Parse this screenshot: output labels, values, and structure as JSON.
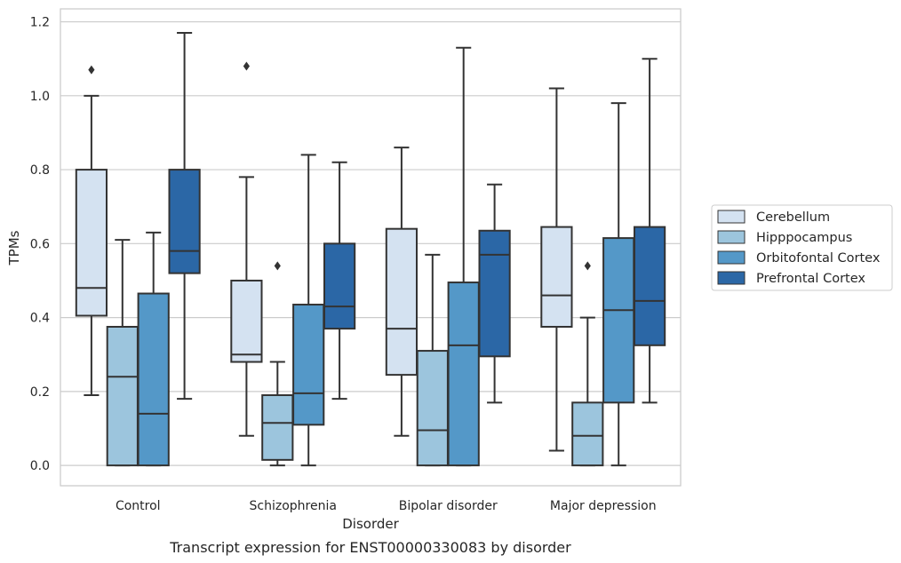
{
  "caption": "Transcript expression for ENST00000330083 by disorder",
  "chart_data": {
    "type": "box",
    "title": "",
    "xlabel": "Disorder",
    "ylabel": "TPMs",
    "categories": [
      "Control",
      "Schizophrenia",
      "Bipolar disorder",
      "Major depression"
    ],
    "ylim": [
      -0.055,
      1.235
    ],
    "yticks": [
      "0.0",
      "0.2",
      "0.4",
      "0.6",
      "0.8",
      "1.0",
      "1.2"
    ],
    "grid": true,
    "legend_position": "right",
    "series": [
      {
        "name": "Cerebellum",
        "color": "#d4e2f1",
        "boxes": [
          {
            "whisker_low": 0.19,
            "q1": 0.405,
            "median": 0.48,
            "q3": 0.8,
            "whisker_high": 1.0,
            "outliers": [
              1.07
            ]
          },
          {
            "whisker_low": 0.08,
            "q1": 0.28,
            "median": 0.3,
            "q3": 0.5,
            "whisker_high": 0.78,
            "outliers": [
              1.08
            ]
          },
          {
            "whisker_low": 0.08,
            "q1": 0.245,
            "median": 0.37,
            "q3": 0.64,
            "whisker_high": 0.86,
            "outliers": []
          },
          {
            "whisker_low": 0.04,
            "q1": 0.375,
            "median": 0.46,
            "q3": 0.645,
            "whisker_high": 1.02,
            "outliers": []
          }
        ]
      },
      {
        "name": "Hipppocampus",
        "color": "#9cc5dd",
        "boxes": [
          {
            "whisker_low": 0.0,
            "q1": 0.0,
            "median": 0.24,
            "q3": 0.375,
            "whisker_high": 0.61,
            "outliers": []
          },
          {
            "whisker_low": 0.0,
            "q1": 0.015,
            "median": 0.115,
            "q3": 0.19,
            "whisker_high": 0.28,
            "outliers": [
              0.54
            ]
          },
          {
            "whisker_low": 0.0,
            "q1": 0.0,
            "median": 0.095,
            "q3": 0.31,
            "whisker_high": 0.57,
            "outliers": []
          },
          {
            "whisker_low": 0.0,
            "q1": 0.0,
            "median": 0.08,
            "q3": 0.17,
            "whisker_high": 0.4,
            "outliers": [
              0.54
            ]
          }
        ]
      },
      {
        "name": "Orbitofontal Cortex",
        "color": "#5498c8",
        "boxes": [
          {
            "whisker_low": 0.0,
            "q1": 0.0,
            "median": 0.14,
            "q3": 0.465,
            "whisker_high": 0.63,
            "outliers": []
          },
          {
            "whisker_low": 0.0,
            "q1": 0.11,
            "median": 0.195,
            "q3": 0.435,
            "whisker_high": 0.84,
            "outliers": []
          },
          {
            "whisker_low": 0.0,
            "q1": 0.0,
            "median": 0.325,
            "q3": 0.495,
            "whisker_high": 1.13,
            "outliers": []
          },
          {
            "whisker_low": 0.0,
            "q1": 0.17,
            "median": 0.42,
            "q3": 0.615,
            "whisker_high": 0.98,
            "outliers": []
          }
        ]
      },
      {
        "name": "Prefrontal Cortex",
        "color": "#2b67a6",
        "boxes": [
          {
            "whisker_low": 0.18,
            "q1": 0.52,
            "median": 0.58,
            "q3": 0.8,
            "whisker_high": 1.17,
            "outliers": []
          },
          {
            "whisker_low": 0.18,
            "q1": 0.37,
            "median": 0.43,
            "q3": 0.6,
            "whisker_high": 0.82,
            "outliers": []
          },
          {
            "whisker_low": 0.17,
            "q1": 0.295,
            "median": 0.57,
            "q3": 0.635,
            "whisker_high": 0.76,
            "outliers": []
          },
          {
            "whisker_low": 0.17,
            "q1": 0.325,
            "median": 0.445,
            "q3": 0.645,
            "whisker_high": 1.1,
            "outliers": []
          }
        ]
      }
    ]
  }
}
